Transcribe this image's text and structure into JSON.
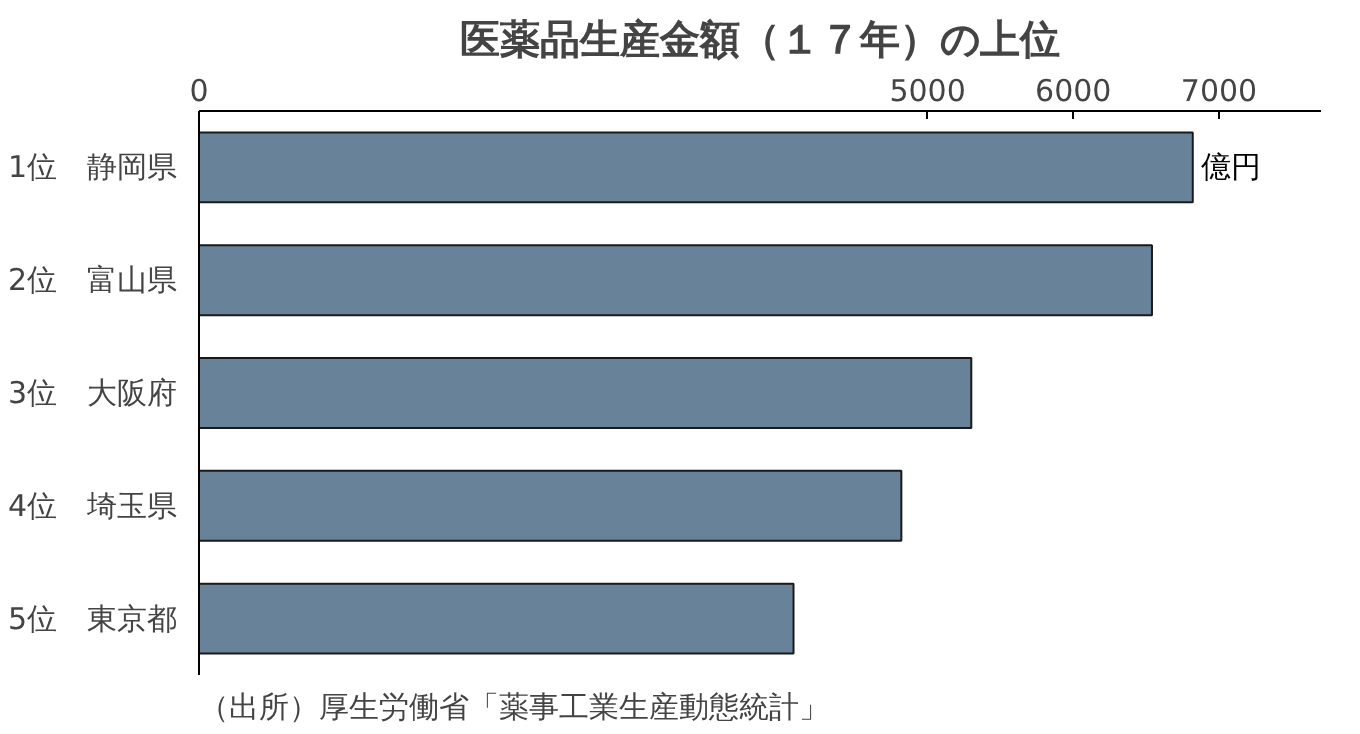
{
  "chart_data": {
    "type": "bar",
    "orientation": "horizontal",
    "title": "医薬品生産金額（１７年）の上位",
    "categories": [
      "1位　静岡県",
      "2位　富山県",
      "3位　大阪府",
      "4位　埼玉県",
      "5位　東京都"
    ],
    "values": [
      6820,
      6540,
      5300,
      4820,
      4080
    ],
    "color": "#68829a",
    "xlim": [
      0,
      7700
    ],
    "xticks": [
      0,
      5000,
      6000,
      7000
    ],
    "grid": false,
    "annotations": [
      {
        "text": "億円",
        "x": 6820,
        "y": "1位　静岡県"
      },
      "（出所）厚生労働省「薬事工業生産動態統計」"
    ]
  }
}
